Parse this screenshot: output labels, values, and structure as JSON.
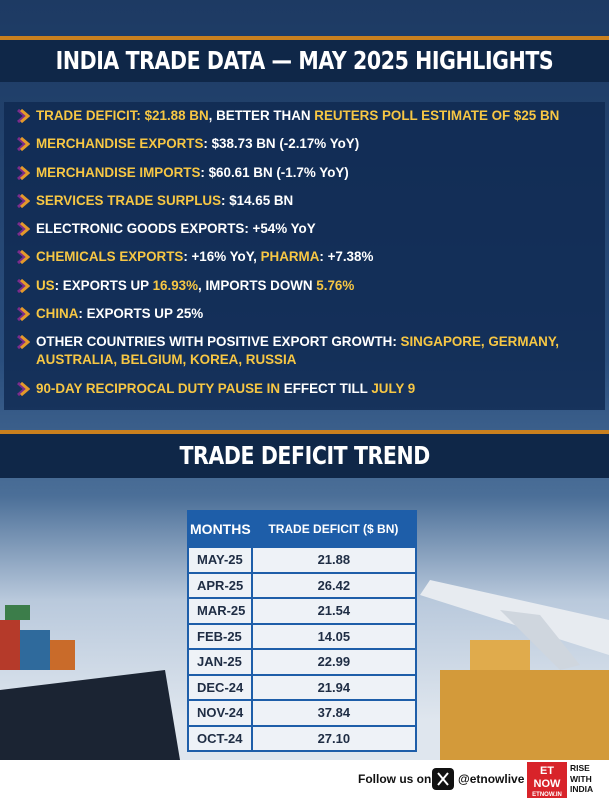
{
  "header": {
    "title": "INDIA TRADE DATA — MAY 2025 HIGHLIGHTS"
  },
  "highlights": [
    {
      "segments": [
        {
          "text": "TRADE DEFICIT: $21.88 BN",
          "color": "#f7c744"
        },
        {
          "text": ", BETTER THAN ",
          "color": "#ffffff"
        },
        {
          "text": "REUTERS POLL ESTIMATE OF $25 BN",
          "color": "#f7c744"
        }
      ]
    },
    {
      "segments": [
        {
          "text": "MERCHANDISE EXPORTS",
          "color": "#f7c744"
        },
        {
          "text": ": $38.73 BN (-2.17% YoY)",
          "color": "#ffffff"
        }
      ]
    },
    {
      "segments": [
        {
          "text": "MERCHANDISE IMPORTS",
          "color": "#f7c744"
        },
        {
          "text": ": $60.61 BN (-1.7% YoY)",
          "color": "#ffffff"
        }
      ]
    },
    {
      "segments": [
        {
          "text": "SERVICES TRADE SURPLUS",
          "color": "#f7c744"
        },
        {
          "text": ": $14.65 BN",
          "color": "#ffffff"
        }
      ]
    },
    {
      "segments": [
        {
          "text": "ELECTRONIC GOODS EXPORTS: +54% YoY",
          "color": "#ffffff"
        }
      ]
    },
    {
      "segments": [
        {
          "text": "CHEMICALS EXPORTS",
          "color": "#f7c744"
        },
        {
          "text": ": +16% YoY, ",
          "color": "#ffffff"
        },
        {
          "text": "PHARMA",
          "color": "#f7c744"
        },
        {
          "text": ": +7.38%",
          "color": "#ffffff"
        }
      ]
    },
    {
      "segments": [
        {
          "text": "US",
          "color": "#f7c744"
        },
        {
          "text": ": EXPORTS UP ",
          "color": "#ffffff"
        },
        {
          "text": "16.93%",
          "color": "#f7c744"
        },
        {
          "text": ", IMPORTS DOWN ",
          "color": "#ffffff"
        },
        {
          "text": "5.76%",
          "color": "#f7c744"
        }
      ]
    },
    {
      "segments": [
        {
          "text": "CHINA",
          "color": "#f7c744"
        },
        {
          "text": ": EXPORTS UP 25%",
          "color": "#ffffff"
        }
      ]
    },
    {
      "segments": [
        {
          "text": "OTHER COUNTRIES WITH POSITIVE EXPORT GROWTH: ",
          "color": "#ffffff"
        },
        {
          "text": "SINGAPORE, GERMANY, AUSTRALIA, BELGIUM, KOREA, RUSSIA",
          "color": "#f7c744"
        }
      ]
    },
    {
      "segments": [
        {
          "text": "90-DAY RECIPROCAL DUTY PAUSE IN",
          "color": "#f7c744"
        },
        {
          "text": " EFFECT TILL ",
          "color": "#ffffff"
        },
        {
          "text": "JULY 9",
          "color": "#f7c744"
        }
      ]
    }
  ],
  "trend": {
    "title": "TRADE DEFICIT TREND",
    "table": {
      "header": [
        "MONTHS",
        "TRADE DEFICIT ($ BN)"
      ],
      "rows": [
        [
          "MAY-25",
          "21.88"
        ],
        [
          "APR-25",
          "26.42"
        ],
        [
          "MAR-25",
          "21.54"
        ],
        [
          "FEB-25",
          "14.05"
        ],
        [
          "JAN-25",
          "22.99"
        ],
        [
          "DEC-24",
          "21.94"
        ],
        [
          "NOV-24",
          "37.84"
        ],
        [
          "OCT-24",
          "27.10"
        ]
      ]
    }
  },
  "footer": {
    "follow": "Follow us on",
    "handle": "@etnowlive",
    "logo": "ET NOW",
    "site": "ETNOW.IN",
    "tagline": "RISE WITH INDIA"
  }
}
